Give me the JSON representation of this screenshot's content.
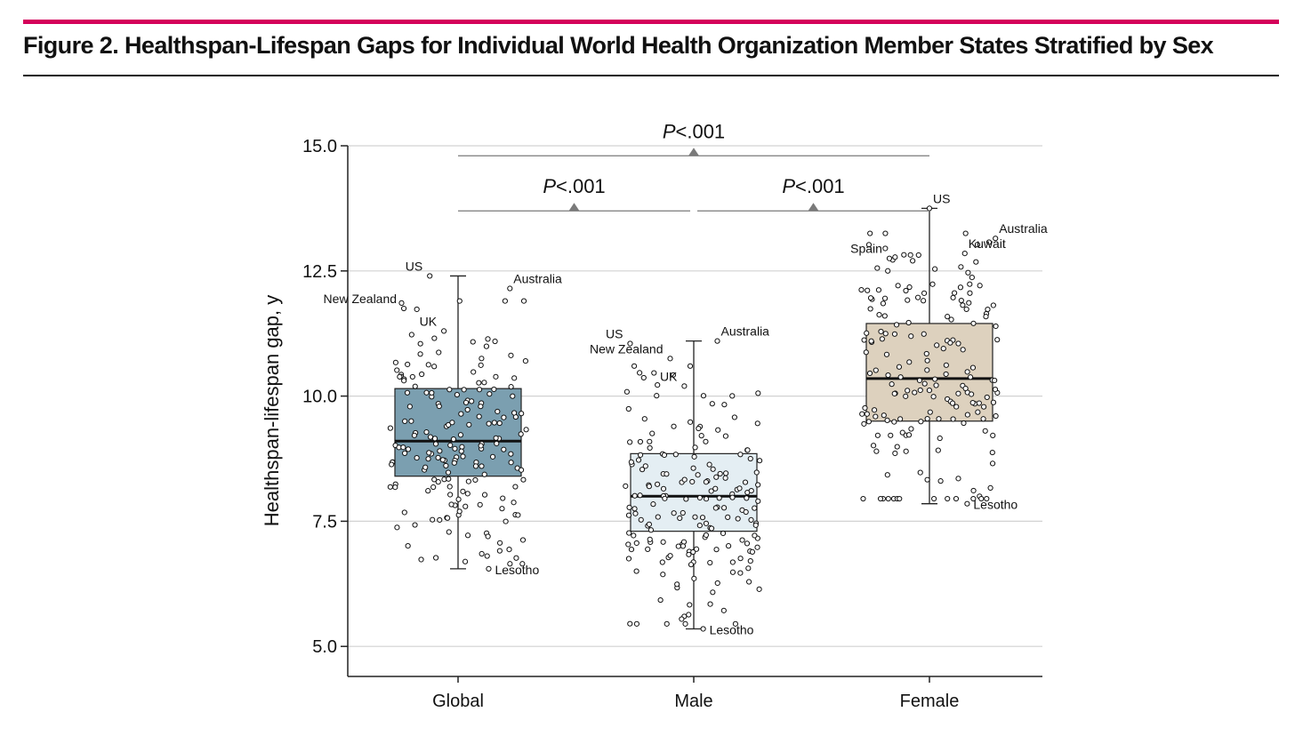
{
  "figure": {
    "title": "Figure 2. Healthspan-Lifespan Gaps for Individual World Health Organization Member States Stratified by Sex"
  },
  "chart_data": {
    "type": "box",
    "title": "",
    "xlabel": "",
    "ylabel": "Healthspan-lifespan gap, y",
    "ylim": [
      4.4,
      15.0
    ],
    "yticks": [
      5.0,
      7.5,
      10.0,
      12.5,
      15.0
    ],
    "ytick_labels": [
      "5.0",
      "7.5",
      "10.0",
      "12.5",
      "15.0"
    ],
    "grid": "horizontal",
    "colors": {
      "Global": "#7b9fb0",
      "Male": "#e4eef3",
      "Female": "#ddd1be",
      "significance": "#7a7a7a",
      "accent_rule": "#d4005a"
    },
    "categories": [
      "Global",
      "Male",
      "Female"
    ],
    "boxes": [
      {
        "category": "Global",
        "whisker_low": 6.55,
        "q1": 8.4,
        "median": 9.1,
        "q3": 10.15,
        "whisker_high": 12.4,
        "labeled_points": [
          {
            "label": "US",
            "x_offset": -0.12,
            "y": 12.4
          },
          {
            "label": "New Zealand",
            "x_offset": -0.23,
            "y": 11.75
          },
          {
            "label": "UK",
            "x_offset": -0.06,
            "y": 11.3
          },
          {
            "label": "Australia",
            "x_offset": 0.22,
            "y": 12.15
          },
          {
            "label": "Lesotho",
            "x_offset": 0.13,
            "y": 6.55
          }
        ]
      },
      {
        "category": "Male",
        "whisker_low": 5.35,
        "q1": 7.3,
        "median": 8.0,
        "q3": 8.85,
        "whisker_high": 11.1,
        "labeled_points": [
          {
            "label": "US",
            "x_offset": -0.27,
            "y": 11.05
          },
          {
            "label": "New Zealand",
            "x_offset": -0.1,
            "y": 10.75
          },
          {
            "label": "UK",
            "x_offset": -0.04,
            "y": 10.2
          },
          {
            "label": "Australia",
            "x_offset": 0.1,
            "y": 11.1
          },
          {
            "label": "Lesotho",
            "x_offset": 0.04,
            "y": 5.35
          }
        ]
      },
      {
        "category": "Female",
        "whisker_low": 7.85,
        "q1": 9.5,
        "median": 10.35,
        "q3": 11.45,
        "whisker_high": 13.75,
        "labeled_points": [
          {
            "label": "US",
            "x_offset": 0.0,
            "y": 13.75
          },
          {
            "label": "Spain",
            "x_offset": -0.17,
            "y": 12.75
          },
          {
            "label": "Australia",
            "x_offset": 0.28,
            "y": 13.15
          },
          {
            "label": "Kuwait",
            "x_offset": 0.15,
            "y": 12.85
          },
          {
            "label": "Lesotho",
            "x_offset": 0.16,
            "y": 7.85
          }
        ]
      }
    ],
    "points_per_group": 183,
    "comparisons": [
      {
        "from": "Global",
        "to": "Female",
        "y": 14.8,
        "label": "P",
        "value": "<.001"
      },
      {
        "from": "Global",
        "to": "Male",
        "y": 13.7,
        "label": "P",
        "value": "<.001"
      },
      {
        "from": "Male",
        "to": "Female",
        "y": 13.7,
        "label": "P",
        "value": "<.001"
      }
    ]
  }
}
